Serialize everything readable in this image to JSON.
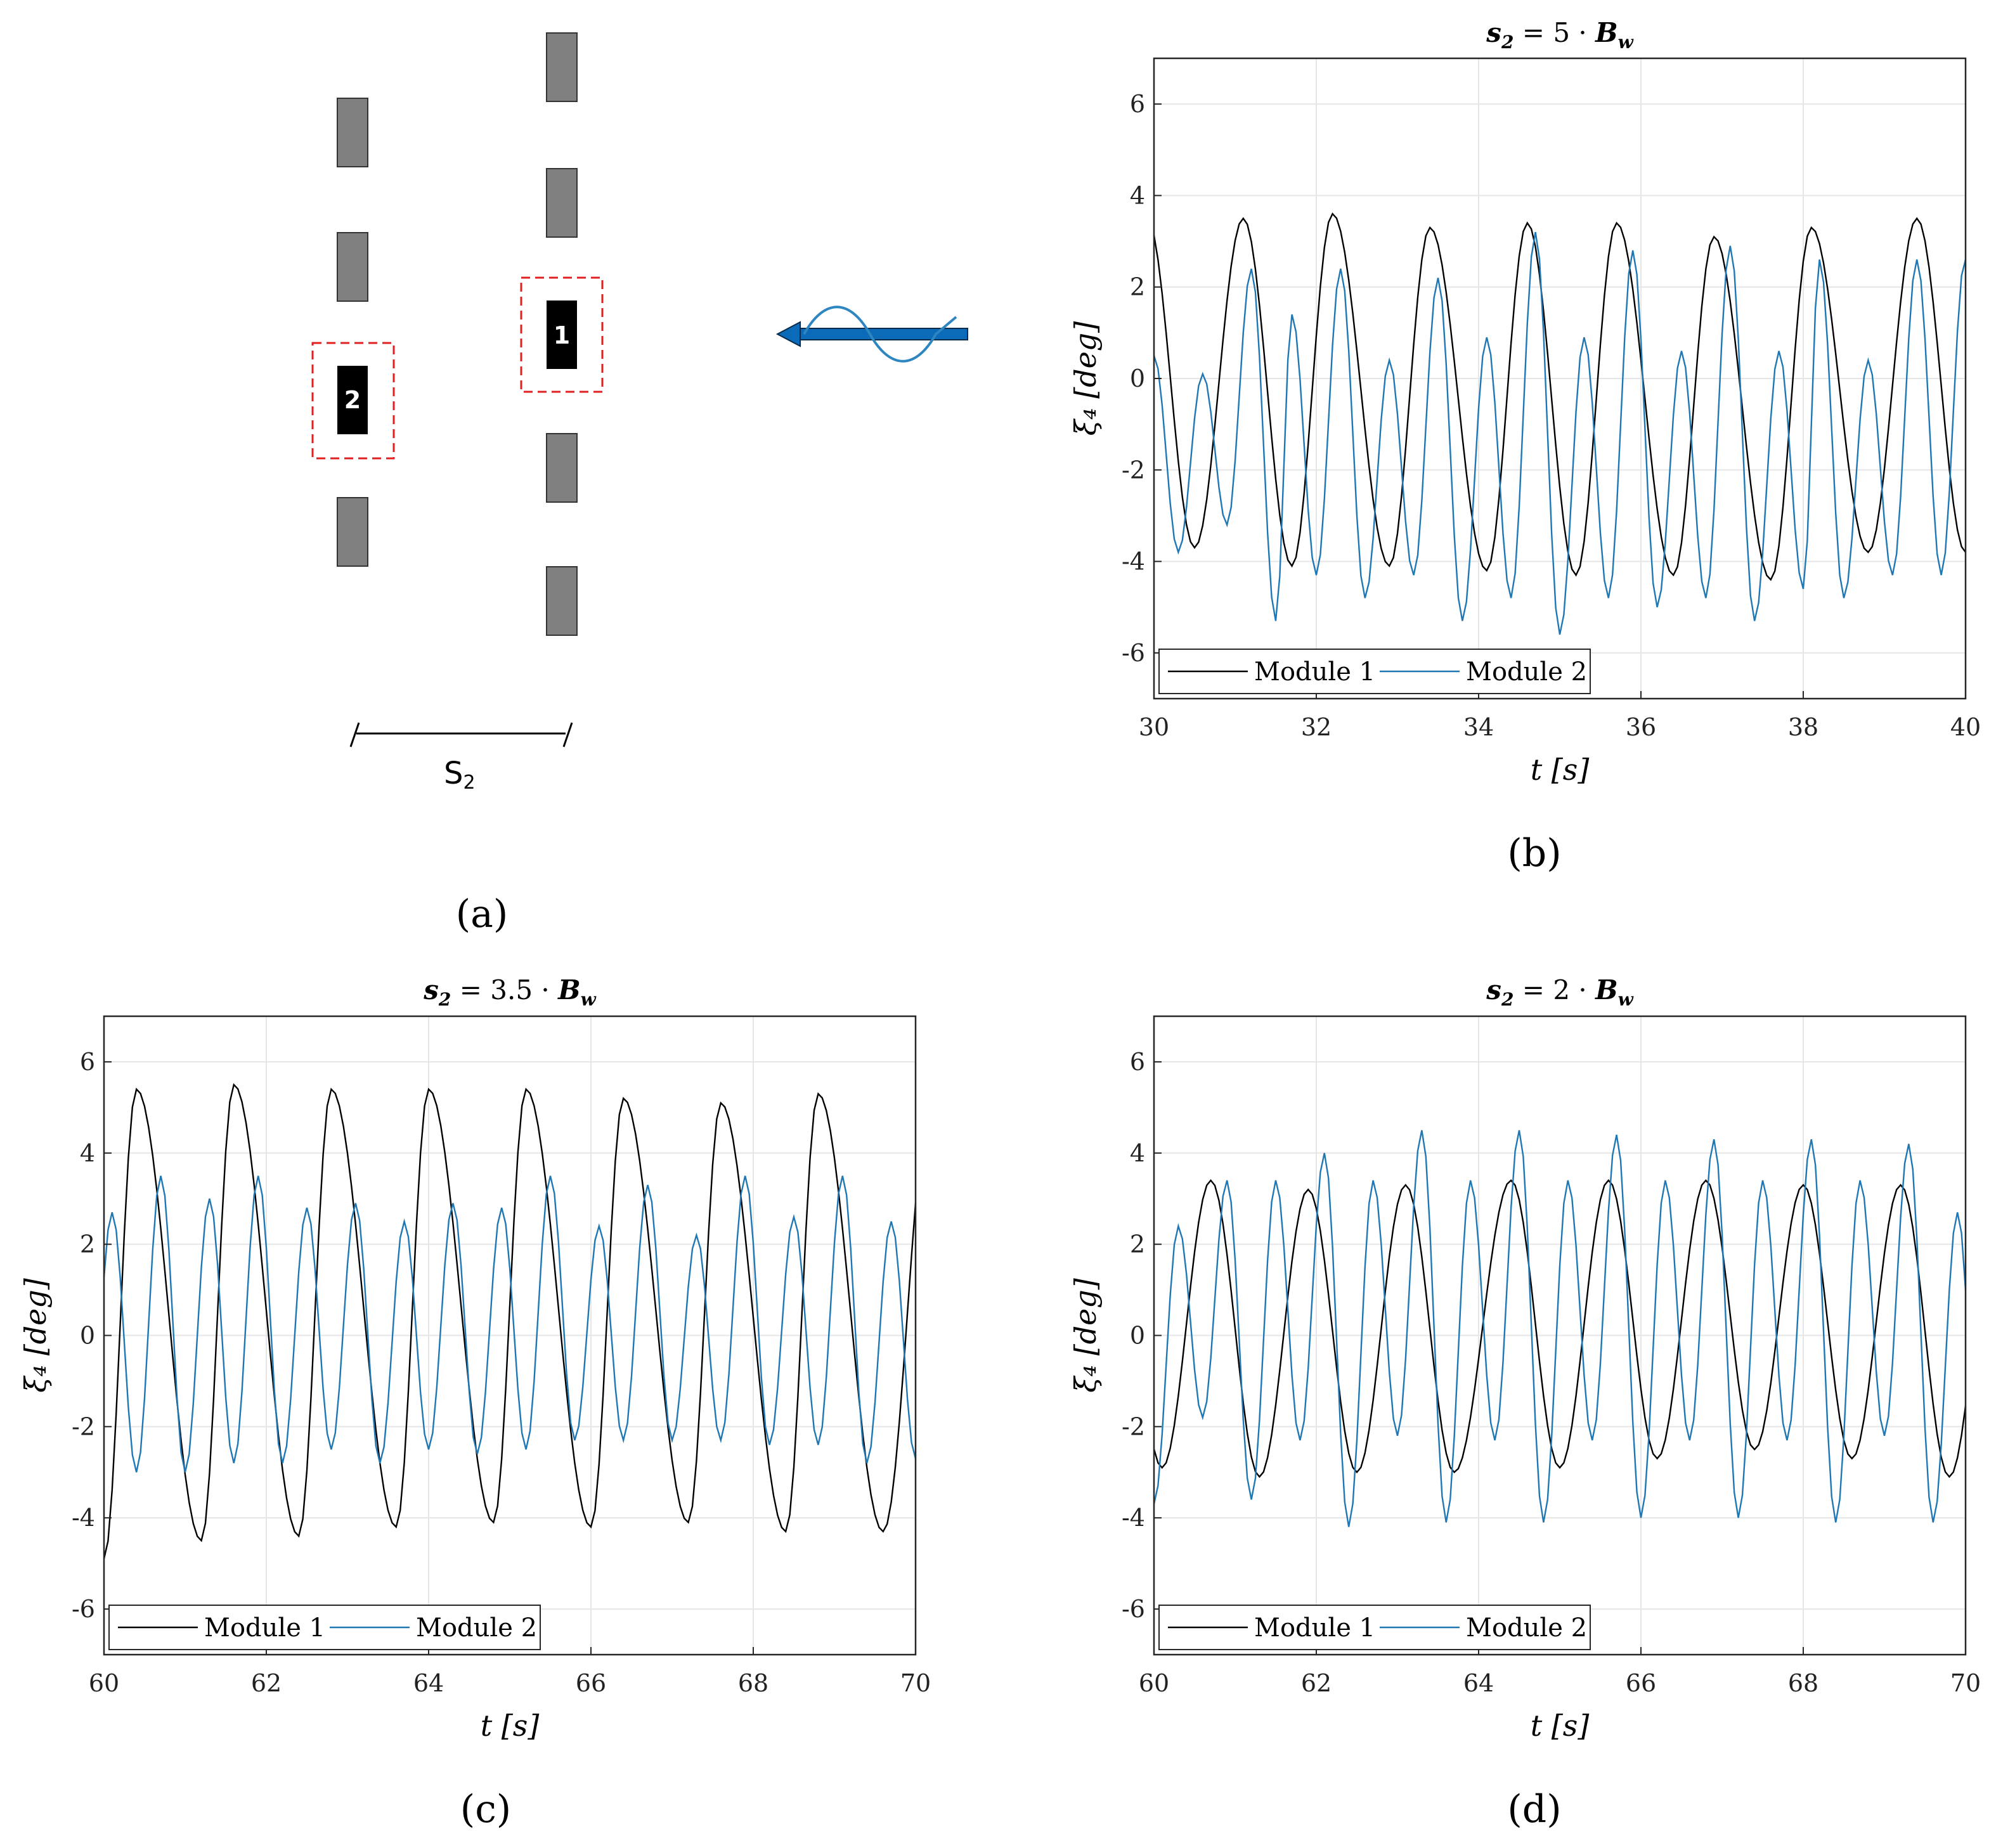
{
  "panel_a": {
    "module1_label": "1",
    "module2_label": "2",
    "spacing_label": "S",
    "spacing_subscript": "2",
    "caption": "(a)",
    "colors": {
      "module": "#000000",
      "cell": "#808080",
      "highlight": "#e02020",
      "wave_arrow": "#0b6bb8",
      "wave": "#2e86c1"
    }
  },
  "captions": {
    "b": "(b)",
    "c": "(c)",
    "d": "(d)"
  },
  "legend": [
    "Module 1",
    "Module 2"
  ],
  "colors": {
    "module1": "#000000",
    "module2": "#1f77b4",
    "grid": "#e6e6e6"
  },
  "chart_data": [
    {
      "id": "b",
      "type": "line",
      "title": "s₂ = 5 · B_w",
      "xlabel": "t [s]",
      "ylabel": "ξ₄ [deg]",
      "xlim": [
        30,
        40
      ],
      "ylim": [
        -7,
        7
      ],
      "xticks": [
        30,
        32,
        34,
        36,
        38,
        40
      ],
      "yticks": [
        -6,
        -4,
        -2,
        0,
        2,
        4,
        6
      ],
      "grid": true,
      "legend_position": "bottom-left",
      "series": [
        {
          "name": "Module 1",
          "color": "#000000",
          "period": 1.17,
          "maxima_t": [
            31.1,
            32.2,
            33.4,
            34.6,
            35.7,
            36.9,
            38.1,
            39.4
          ],
          "maxima": [
            3.5,
            3.6,
            3.3,
            3.4,
            3.4,
            3.1,
            3.3,
            3.5
          ],
          "minima_t": [
            30.5,
            31.7,
            32.9,
            34.1,
            35.2,
            36.4,
            37.6,
            38.8,
            40.0
          ],
          "minima": [
            -3.7,
            -4.1,
            -4.1,
            -4.2,
            -4.3,
            -4.3,
            -4.4,
            -3.8,
            -3.8
          ]
        },
        {
          "name": "Module 2",
          "color": "#1f77b4",
          "period": 0.585,
          "maxima_t": [
            30.0,
            30.6,
            31.2,
            31.7,
            32.3,
            32.9,
            33.5,
            34.1,
            34.7,
            35.3,
            35.9,
            36.5,
            37.1,
            37.7,
            38.2,
            38.8,
            39.4
          ],
          "maxima": [
            0.5,
            0.1,
            2.4,
            1.4,
            2.4,
            0.4,
            2.2,
            0.9,
            3.2,
            0.9,
            2.8,
            0.6,
            2.9,
            0.6,
            2.6,
            0.4,
            2.6
          ],
          "minima_t": [
            30.3,
            30.9,
            31.5,
            32.0,
            32.6,
            33.2,
            33.8,
            34.4,
            35.0,
            35.6,
            36.2,
            36.8,
            37.4,
            38.0,
            38.5,
            39.1,
            39.7
          ],
          "minima": [
            -3.8,
            -3.2,
            -5.3,
            -4.3,
            -4.8,
            -4.3,
            -5.3,
            -4.8,
            -5.6,
            -4.8,
            -5.0,
            -4.8,
            -5.3,
            -4.6,
            -4.8,
            -4.3,
            -4.3
          ]
        }
      ]
    },
    {
      "id": "c",
      "type": "line",
      "title": "s₂ = 3.5 · B_w",
      "xlabel": "t [s]",
      "ylabel": "ξ₄ [deg]",
      "xlim": [
        60,
        70
      ],
      "ylim": [
        -7,
        7
      ],
      "xticks": [
        60,
        62,
        64,
        66,
        68,
        70
      ],
      "yticks": [
        -6,
        -4,
        -2,
        0,
        2,
        4,
        6
      ],
      "grid": true,
      "legend_position": "bottom-left",
      "series": [
        {
          "name": "Module 1",
          "color": "#000000",
          "period": 1.2,
          "maxima_t": [
            60.4,
            61.6,
            62.8,
            64.0,
            65.2,
            66.4,
            67.6,
            68.8
          ],
          "maxima": [
            5.4,
            5.5,
            5.4,
            5.4,
            5.4,
            5.2,
            5.1,
            5.3
          ],
          "minima_t": [
            60.0,
            61.2,
            62.4,
            63.6,
            64.8,
            66.0,
            67.2,
            68.4,
            69.6
          ],
          "minima": [
            -4.9,
            -4.5,
            -4.4,
            -4.2,
            -4.1,
            -4.2,
            -4.1,
            -4.3,
            -4.3
          ]
        },
        {
          "name": "Module 2",
          "color": "#1f77b4",
          "period": 0.6,
          "maxima_t": [
            60.1,
            60.7,
            61.3,
            61.9,
            62.5,
            63.1,
            63.7,
            64.3,
            64.9,
            65.5,
            66.1,
            66.7,
            67.3,
            67.9,
            68.5,
            69.1,
            69.7
          ],
          "maxima": [
            2.7,
            3.5,
            3.0,
            3.5,
            2.8,
            2.9,
            2.5,
            2.9,
            2.8,
            3.5,
            2.4,
            3.3,
            2.2,
            3.5,
            2.6,
            3.5,
            2.5
          ],
          "minima_t": [
            60.4,
            61.0,
            61.6,
            62.2,
            62.8,
            63.4,
            64.0,
            64.6,
            65.2,
            65.8,
            66.4,
            67.0,
            67.6,
            68.2,
            68.8,
            69.4,
            70.0
          ],
          "minima": [
            -3.0,
            -3.0,
            -2.8,
            -2.8,
            -2.5,
            -2.8,
            -2.5,
            -2.6,
            -2.5,
            -2.3,
            -2.3,
            -2.3,
            -2.3,
            -2.4,
            -2.4,
            -2.8,
            -2.7
          ]
        }
      ]
    },
    {
      "id": "d",
      "type": "line",
      "title": "s₂ = 2 · B_w",
      "xlabel": "t [s]",
      "ylabel": "ξ₄ [deg]",
      "xlim": [
        60,
        70
      ],
      "ylim": [
        -7,
        7
      ],
      "xticks": [
        60,
        62,
        64,
        66,
        68,
        70
      ],
      "yticks": [
        -6,
        -4,
        -2,
        0,
        2,
        4,
        6
      ],
      "grid": true,
      "legend_position": "bottom-left",
      "series": [
        {
          "name": "Module 1",
          "color": "#000000",
          "period": 1.22,
          "maxima_t": [
            60.7,
            61.9,
            63.1,
            64.4,
            65.6,
            66.8,
            68.0,
            69.2
          ],
          "maxima": [
            3.4,
            3.2,
            3.3,
            3.4,
            3.4,
            3.4,
            3.3,
            3.3
          ],
          "minima_t": [
            60.1,
            61.3,
            62.5,
            63.7,
            65.0,
            66.2,
            67.4,
            68.6,
            69.8
          ],
          "minima": [
            -2.9,
            -3.1,
            -3.0,
            -3.0,
            -2.9,
            -2.7,
            -2.5,
            -2.7,
            -3.1
          ]
        },
        {
          "name": "Module 2",
          "color": "#1f77b4",
          "period": 0.6,
          "maxima_t": [
            60.3,
            60.9,
            61.5,
            62.1,
            62.7,
            63.3,
            63.9,
            64.5,
            65.1,
            65.7,
            66.3,
            66.9,
            67.5,
            68.1,
            68.7,
            69.3,
            69.9
          ],
          "maxima": [
            2.4,
            3.4,
            3.4,
            4.0,
            3.4,
            4.5,
            3.4,
            4.5,
            3.4,
            4.4,
            3.4,
            4.3,
            3.4,
            4.3,
            3.4,
            4.2,
            2.7
          ],
          "minima_t": [
            60.0,
            60.6,
            61.2,
            61.8,
            62.4,
            63.0,
            63.6,
            64.2,
            64.8,
            65.4,
            66.0,
            66.6,
            67.2,
            67.8,
            68.4,
            69.0,
            69.6
          ],
          "minima": [
            -3.7,
            -1.8,
            -3.6,
            -2.3,
            -4.2,
            -2.2,
            -4.1,
            -2.3,
            -4.1,
            -2.3,
            -4.0,
            -2.3,
            -4.0,
            -2.3,
            -4.1,
            -2.2,
            -4.1
          ]
        }
      ]
    }
  ]
}
